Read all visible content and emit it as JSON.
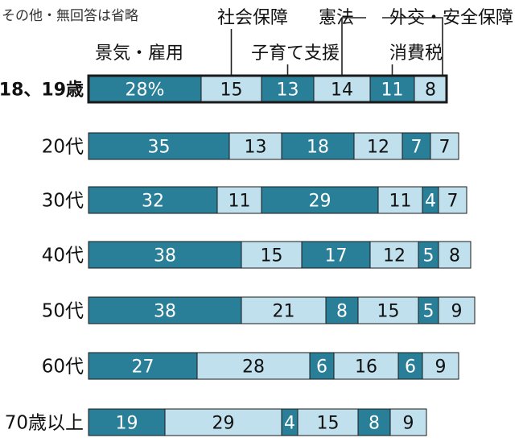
{
  "colors": {
    "dark": "#2a7f98",
    "light": "#bfe0ec",
    "stroke": "#1a1a1a",
    "text_on_dark": "#ffffff",
    "text_on_light": "#111111"
  },
  "legend": {
    "other": "その他・無回答は省略",
    "s1": "景気・雇用",
    "s2": "社会保障",
    "s3": "子育て支援",
    "s4": "憲法",
    "s5": "消費税",
    "s6": "外交・安全保障"
  },
  "chart_data": {
    "type": "bar",
    "orientation": "horizontal",
    "stacked": true,
    "unit": "%",
    "categories": [
      "18、19歳",
      "20代",
      "30代",
      "40代",
      "50代",
      "60代",
      "70歳以上"
    ],
    "series": [
      {
        "name": "景気・雇用",
        "values": [
          28,
          35,
          32,
          38,
          38,
          27,
          19
        ]
      },
      {
        "name": "社会保障",
        "values": [
          15,
          13,
          11,
          15,
          21,
          28,
          29
        ]
      },
      {
        "name": "子育て支援",
        "values": [
          13,
          18,
          29,
          17,
          8,
          6,
          4
        ]
      },
      {
        "name": "憲法",
        "values": [
          14,
          12,
          11,
          12,
          15,
          16,
          15
        ]
      },
      {
        "name": "消費税",
        "values": [
          11,
          7,
          4,
          5,
          5,
          6,
          8
        ]
      },
      {
        "name": "外交・安全保障",
        "values": [
          8,
          7,
          7,
          8,
          9,
          9,
          9
        ]
      }
    ],
    "data_labels": [
      [
        "28%",
        "15",
        "13",
        "14",
        "11",
        "8"
      ],
      [
        "35",
        "13",
        "18",
        "12",
        "7",
        "7"
      ],
      [
        "32",
        "11",
        "29",
        "11",
        "4",
        "7"
      ],
      [
        "38",
        "15",
        "17",
        "12",
        "5",
        "8"
      ],
      [
        "38",
        "21",
        "8",
        "15",
        "5",
        "9"
      ],
      [
        "27",
        "28",
        "6",
        "16",
        "6",
        "9"
      ],
      [
        "19",
        "29",
        "4",
        "15",
        "8",
        "9"
      ]
    ],
    "note": "その他・無回答は省略"
  }
}
